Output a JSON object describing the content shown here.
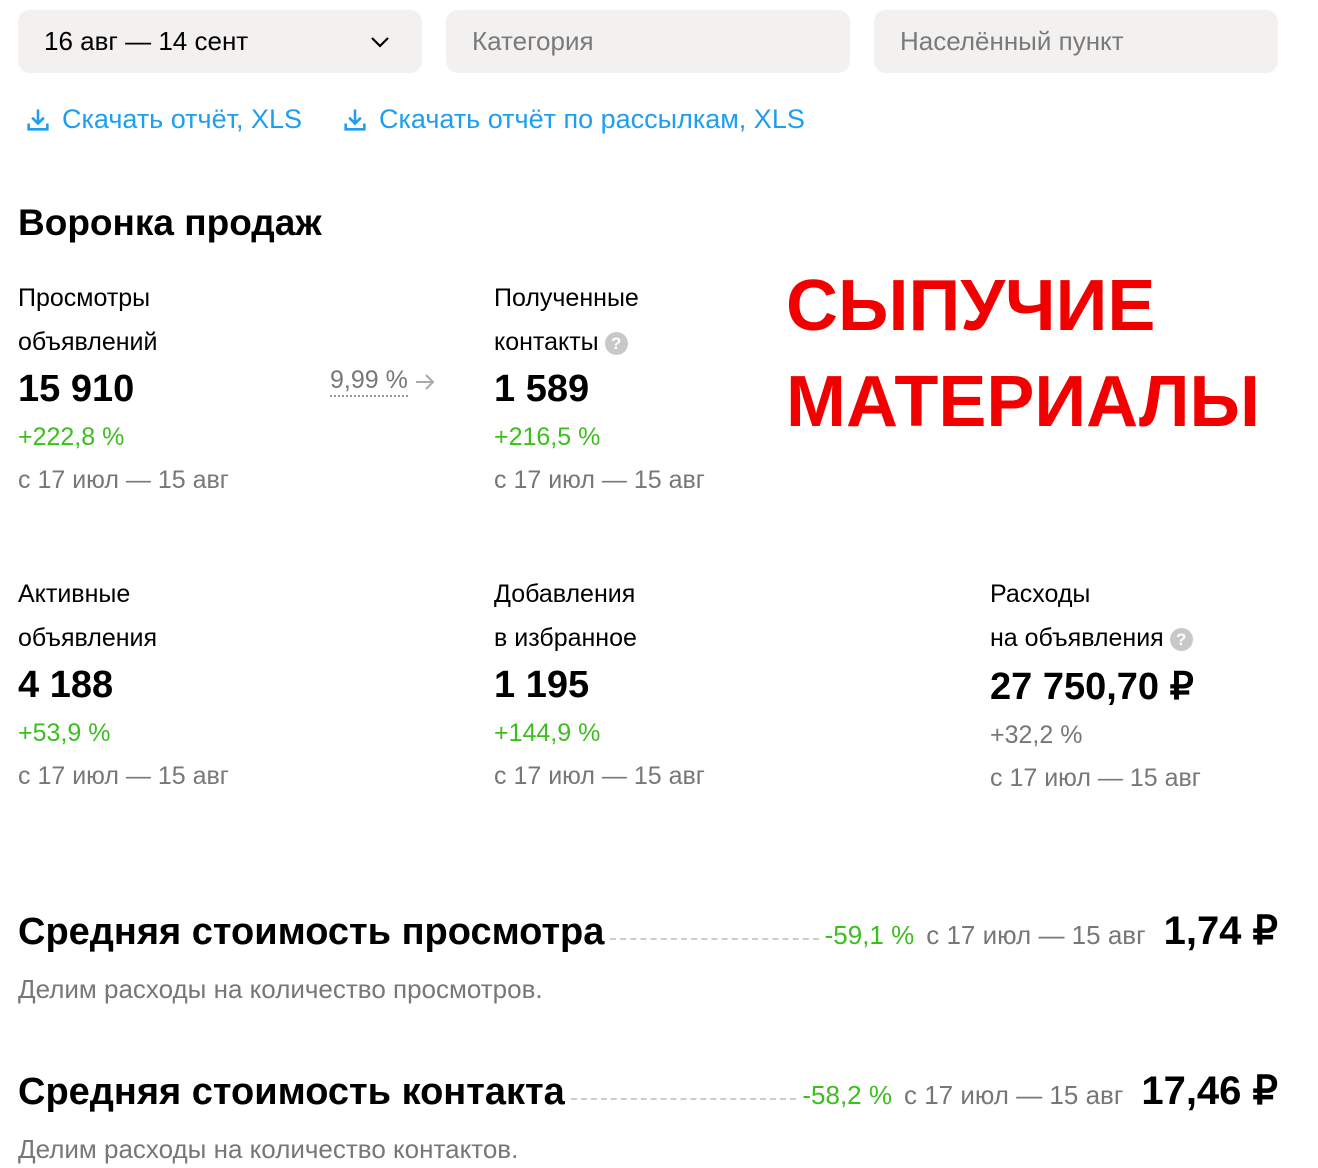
{
  "filters": {
    "period": "16 авг — 14 сент",
    "category_placeholder": "Категория",
    "city_placeholder": "Населённый пункт"
  },
  "links": {
    "report": "Скачать отчёт, XLS",
    "mailing_report": "Скачать отчёт по рассылкам, XLS"
  },
  "funnel": {
    "title": "Воронка продаж",
    "conversion": "9,99 %",
    "metrics": [
      {
        "label1": "Просмотры",
        "label2": "объявлений",
        "value": "15 910",
        "change": "+222,8 %",
        "period": "с 17 июл — 15 авг"
      },
      {
        "label1": "Полученные",
        "label2": "контакты",
        "value": "1 589",
        "change": "+216,5 %",
        "period": "с 17 июл — 15 авг"
      },
      {
        "label1": "Активные",
        "label2": "объявления",
        "value": "4 188",
        "change": "+53,9 %",
        "period": "с 17 июл — 15 авг"
      },
      {
        "label1": "Добавления",
        "label2": "в избранное",
        "value": "1 195",
        "change": "+144,9 %",
        "period": "с 17 июл — 15 авг"
      },
      {
        "label1": "Расходы",
        "label2": "на объявления",
        "value": "27 750,70 ₽",
        "change": "+32,2 %",
        "period": "с 17 июл — 15 авг"
      }
    ]
  },
  "overlay": {
    "line1": "СЫПУЧИЕ",
    "line2": "МАТЕРИАЛЫ",
    "color": "#f20000"
  },
  "costs": [
    {
      "title": "Средняя стоимость просмотра",
      "change": "-59,1 %",
      "period": "с 17 июл — 15 авг",
      "value": "1,74 ₽",
      "description": "Делим расходы на количество просмотров."
    },
    {
      "title": "Средняя стоимость контакта",
      "change": "-58,2 %",
      "period": "с 17 июл — 15 авг",
      "value": "17,46 ₽",
      "description": "Делим расходы на количество контактов."
    }
  ],
  "colors": {
    "link": "#1e9ef0",
    "positive": "#3dbe1f",
    "muted": "#777777"
  }
}
